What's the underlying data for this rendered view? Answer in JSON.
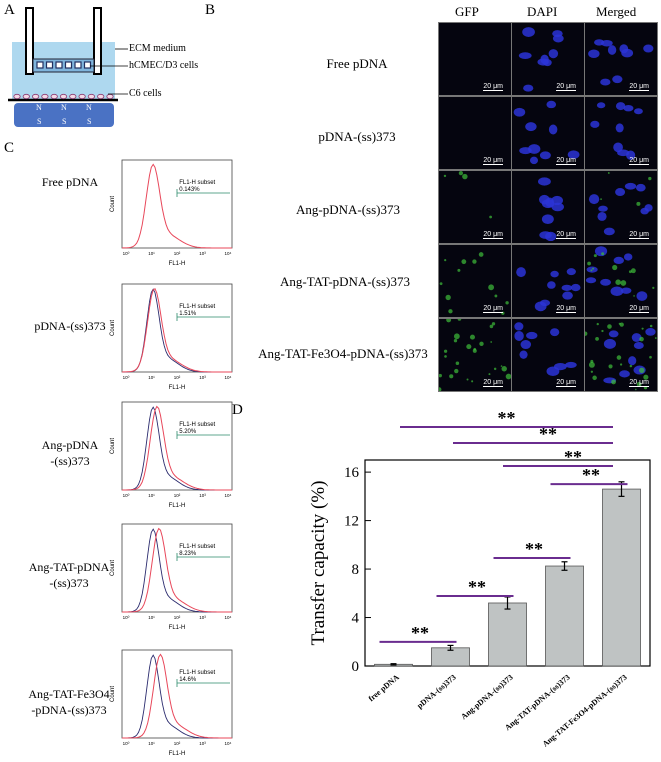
{
  "panels": {
    "a": "A",
    "b": "B",
    "c": "C",
    "d": "D"
  },
  "panel_a": {
    "ecm_label": "ECM medium",
    "hcmec_label": "hCMEC/D3 cells",
    "c6_label": "C6 cells",
    "magnet_labels": [
      "N",
      "N",
      "N",
      "S",
      "S",
      "S"
    ]
  },
  "panel_b": {
    "columns": [
      "GFP",
      "DAPI",
      "Merged"
    ],
    "rows": [
      "Free pDNA",
      "pDNA-(ss)373",
      "Ang-pDNA-(ss)373",
      "Ang-TAT-pDNA-(ss)373",
      "Ang-TAT-Fe3O4-pDNA-(ss)373"
    ],
    "scale_bar": "20 μm"
  },
  "panel_c": {
    "rows": [
      {
        "label": "Free pDNA",
        "subset": "FL1-H subset",
        "percent": "0.143%"
      },
      {
        "label": "pDNA-(ss)373",
        "subset": "FL1-H subset",
        "percent": "1.51%"
      },
      {
        "label": "Ang-pDNA\n-(ss)373",
        "subset": "FL1-H subset",
        "percent": "5.20%"
      },
      {
        "label": "Ang-TAT-pDNA\n-(ss)373",
        "subset": "FL1-H subset",
        "percent": "8.23%"
      },
      {
        "label": "Ang-TAT-Fe3O4\n-pDNA-(ss)373",
        "subset": "FL1-H subset",
        "percent": "14.6%"
      }
    ],
    "xlabel": "FL1-H",
    "ylabel": "Count",
    "ticks": [
      "10⁰",
      "10¹",
      "10²",
      "10³",
      "10⁴"
    ],
    "colors": {
      "control": "#2b2b6e",
      "sample": "#e8475a"
    }
  },
  "chart_data": {
    "type": "bar",
    "categories": [
      "free pDNA",
      "pDNA-(ss)373",
      "Ang-pDNA-(ss)373",
      "Ang-TAT-pDNA-(ss)373",
      "Ang-TAT-Fe3O4-pDNA-(ss)373"
    ],
    "values": [
      0.14,
      1.5,
      5.2,
      8.25,
      14.6
    ],
    "errors": [
      0.05,
      0.2,
      0.5,
      0.35,
      0.6
    ],
    "ylabel": "Transfer capacity (%)",
    "yticks": [
      0,
      4,
      8,
      12,
      16
    ],
    "ylim": [
      0,
      17
    ],
    "bar_color": "#bfc3c3",
    "significance_color": "#6a2c8f",
    "significance_label": "**",
    "comparisons": [
      [
        0,
        1
      ],
      [
        1,
        2
      ],
      [
        2,
        3
      ],
      [
        3,
        4
      ],
      [
        2,
        4
      ],
      [
        1,
        4
      ],
      [
        0,
        4
      ]
    ]
  }
}
